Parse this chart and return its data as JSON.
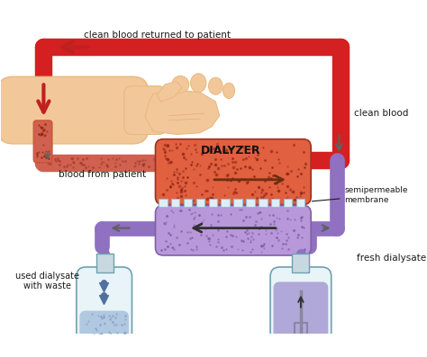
{
  "labels": {
    "clean_blood_top": "clean blood returned to patient",
    "clean_blood_right": "clean blood",
    "blood_from_patient": "blood from patient",
    "dialyzer": "DIALYZER",
    "semipermeable": "semipermeable\nmembrane",
    "used_dialysate": "used dialysate\nwith waste",
    "fresh_dialysate": "fresh dialysate"
  },
  "colors": {
    "blood_red": "#D42020",
    "blood_tube_red": "#C85030",
    "blood_tube_fill": "#D06050",
    "dialysate_purple": "#A888D0",
    "dialysate_medium": "#B898D8",
    "dialysate_light": "#C8B0E8",
    "skin_tone": "#F2C89A",
    "skin_mid": "#E8B880",
    "skin_dark": "#C89060",
    "background": "#FFFFFF",
    "dialyzer_top": "#E06040",
    "dialyzer_dots": "#8B2010",
    "dialyzer_bottom": "#B890D0",
    "dialysate_dots": "#7050A0",
    "membrane_white": "#D8E8F0",
    "bottle_body": "#E8F4F8",
    "bottle_edge": "#70A0B0",
    "bottle_liquid_l": "#B0C8E0",
    "bottle_liquid_r": "#B0A8D8",
    "tube_purple": "#9070C0",
    "tube_dark": "#7858A8",
    "arrow_dark": "#303030",
    "arrow_brown": "#6B3010",
    "text_dark": "#1A1A1A",
    "grey_arrow": "#606060",
    "red_arrow": "#C02020"
  }
}
